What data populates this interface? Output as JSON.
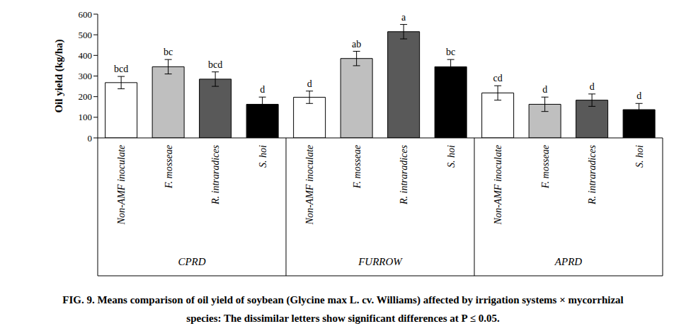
{
  "chart_data": {
    "type": "bar",
    "title": "FIG. 9. Means comparison of oil yield of soybean (Glycine max L. cv. Williams) affected by irrigation systems × mycorrhizal species: The dissimilar letters show significant differences at P ≤ 0.05.",
    "y_label": "Oil yield (kg/ha)",
    "categories": [
      "Non-AMF inoculate",
      "F. mosseae",
      "R. intraradices",
      "S. hoi",
      "Non-AMF inoculate",
      "F. mosseae",
      "R. intraradices",
      "S. hoi",
      "Non-AMF inoculate",
      "F. mosseae",
      "R. intraradices",
      "S. hoi"
    ],
    "groups": [
      "CPRD",
      "FURROW",
      "APRD"
    ],
    "values": [
      268,
      345,
      285,
      163,
      197,
      385,
      515,
      345,
      218,
      163,
      183,
      137
    ],
    "errors": [
      30,
      35,
      35,
      35,
      30,
      35,
      35,
      35,
      35,
      35,
      30,
      30
    ],
    "annotations": [
      "bcd",
      "bc",
      "bcd",
      "d",
      "d",
      "ab",
      "a",
      "bc",
      "cd",
      "d",
      "d",
      "d"
    ],
    "colors": [
      "#ffffff",
      "#bfbfbf",
      "#595959",
      "#000000",
      "#ffffff",
      "#bfbfbf",
      "#595959",
      "#000000",
      "#ffffff",
      "#bfbfbf",
      "#595959",
      "#000000"
    ],
    "ylim": [
      0,
      600
    ],
    "yticks": [
      0,
      100,
      200,
      300,
      400,
      500,
      600
    ],
    "grid": false
  }
}
